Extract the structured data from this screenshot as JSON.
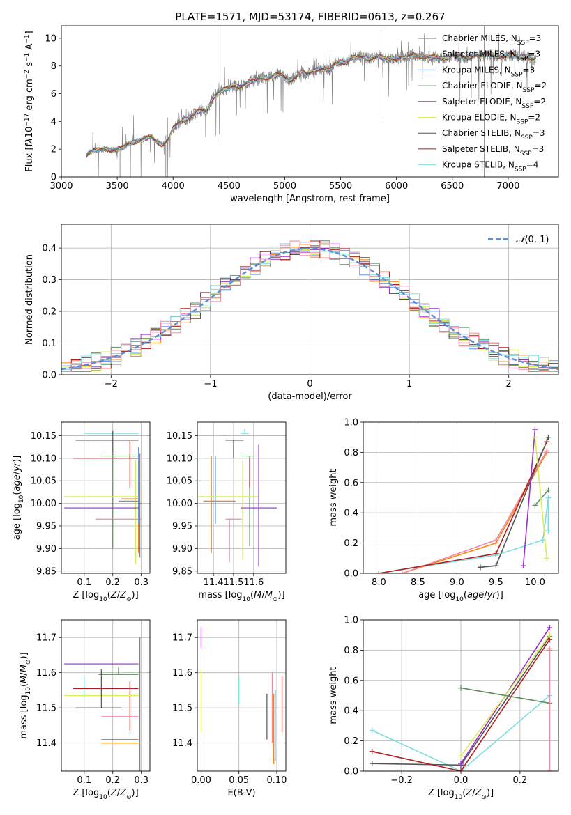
{
  "figure": {
    "title": "PLATE=1571, MJD=53174, FIBERID=0613, z=0.267"
  },
  "series_colors": [
    "#7f7f7f",
    "#ff7f0e",
    "#6495ed",
    "#5f8f5f",
    "#9b30c8",
    "#d6ef53",
    "#555555",
    "#b01e1e",
    "#7ddde0",
    "#f08ca6"
  ],
  "chart_data": [
    {
      "id": "spectrum",
      "type": "line",
      "xlabel": "wavelength [Angstrom, rest frame]",
      "ylabel_html": "Flux [f<tspan font-style='italic'>λ</tspan>10<tspan baseline-shift='super' font-size='9'>−17</tspan> erg cm<tspan baseline-shift='super' font-size='9'>−2</tspan> s<tspan baseline-shift='super' font-size='9'>−1</tspan> A<tspan baseline-shift='super' font-size='9'>−1</tspan>]",
      "xlim": [
        3000,
        7450
      ],
      "ylim": [
        0,
        10.9
      ],
      "xticks": [
        3000,
        3500,
        4000,
        4500,
        5000,
        5500,
        6000,
        6500,
        7000
      ],
      "yticks": [
        0,
        2,
        4,
        6,
        8,
        10
      ],
      "spectrum_x": [
        3220,
        3260,
        3300,
        3350,
        3400,
        3450,
        3500,
        3550,
        3600,
        3650,
        3700,
        3750,
        3800,
        3850,
        3900,
        3950,
        4000,
        4050,
        4100,
        4150,
        4200,
        4250,
        4300,
        4350,
        4400,
        4450,
        4500,
        4550,
        4600,
        4650,
        4700,
        4750,
        4800,
        4850,
        4900,
        4950,
        5000,
        5050,
        5100,
        5150,
        5200,
        5250,
        5300,
        5350,
        5400,
        5450,
        5500,
        5550,
        5600,
        5650,
        5700,
        5750,
        5800,
        5850,
        5900,
        5950,
        6000,
        6050,
        6100,
        6150,
        6200,
        6250,
        6300,
        6350,
        6400,
        6450,
        6500,
        6550,
        6600,
        6650,
        6700,
        6750,
        6800,
        6850,
        6900,
        6950,
        7000,
        7050,
        7100,
        7150,
        7200,
        7250
      ],
      "spectrum_y": [
        1.5,
        1.8,
        1.9,
        2.0,
        2.0,
        1.9,
        2.0,
        2.1,
        2.4,
        2.5,
        2.6,
        2.8,
        2.9,
        2.6,
        2.3,
        2.6,
        3.5,
        3.9,
        4.1,
        4.3,
        4.6,
        4.8,
        4.7,
        5.6,
        6.1,
        6.3,
        6.4,
        6.6,
        6.5,
        6.7,
        6.9,
        7.0,
        7.2,
        7.1,
        7.3,
        7.4,
        7.2,
        7.0,
        7.2,
        7.6,
        7.4,
        7.6,
        7.8,
        7.8,
        7.7,
        8.2,
        8.3,
        8.2,
        8.6,
        8.6,
        8.7,
        8.5,
        8.6,
        8.7,
        8.5,
        8.6,
        8.5,
        8.7,
        8.6,
        8.9,
        8.7,
        8.7,
        8.6,
        8.7,
        8.5,
        8.6,
        8.8,
        8.7,
        8.6,
        8.6,
        8.8,
        8.7,
        8.9,
        8.8,
        8.7,
        8.6,
        8.8,
        8.8,
        8.6,
        8.7,
        8.5,
        8.4
      ],
      "legend": [
        {
          "label": "Chabrier MILES, N",
          "sub": "SSP",
          "tail": "=3",
          "color": "#7f7f7f"
        },
        {
          "label": "Salpeter MILES, N",
          "sub": "SSP",
          "tail": "=3",
          "color": "#ff7f0e"
        },
        {
          "label": "Kroupa MILES, N",
          "sub": "SSP",
          "tail": "=3",
          "color": "#6495ed"
        },
        {
          "label": "Chabrier ELODIE, N",
          "sub": "SSP",
          "tail": "=2",
          "color": "#5f8f5f"
        },
        {
          "label": "Salpeter ELODIE, N",
          "sub": "SSP",
          "tail": "=2",
          "color": "#9b30c8"
        },
        {
          "label": "Kroupa ELODIE, N",
          "sub": "SSP",
          "tail": "=2",
          "color": "#d6ef53"
        },
        {
          "label": "Chabrier STELIB, N",
          "sub": "SSP",
          "tail": "=3",
          "color": "#555555"
        },
        {
          "label": "Salpeter STELIB, N",
          "sub": "SSP",
          "tail": "=3",
          "color": "#b01e1e"
        },
        {
          "label": "Kroupa STELIB, N",
          "sub": "SSP",
          "tail": "=4",
          "color": "#7ddde0"
        }
      ]
    },
    {
      "id": "residuals",
      "type": "histogram",
      "xlabel": "(data-model)/error",
      "ylabel": "Normed distribution",
      "xlim": [
        -2.5,
        2.5
      ],
      "ylim": [
        0,
        0.475
      ],
      "xticks": [
        -2,
        -1,
        0,
        1,
        2
      ],
      "yticks": [
        0.0,
        0.1,
        0.2,
        0.3,
        0.4
      ],
      "legend_label": "N(0,1)",
      "gaussian": {
        "mu": 0,
        "sigma": 1
      }
    },
    {
      "id": "age_vs_Z",
      "type": "errorbar",
      "xlabel": "Z [log10(Z/Z⊙)]",
      "ylabel": "age  [log10(age/yr)]",
      "xlim": [
        0.02,
        0.33
      ],
      "ylim": [
        9.845,
        10.18
      ],
      "xticks": [
        0.1,
        0.2,
        0.3
      ],
      "yticks": [
        9.85,
        9.9,
        9.95,
        10.0,
        10.05,
        10.1,
        10.15
      ],
      "points": [
        {
          "c": "#7ddde0",
          "x": 0.2,
          "xerr": [
            0.1,
            0.09
          ],
          "y": 10.155,
          "yerr": [
            0.0,
            0.01
          ]
        },
        {
          "c": "#555555",
          "x": 0.2,
          "xerr": [
            0.13,
            0.09
          ],
          "y": 10.14,
          "yerr": [
            0.04,
            0.02
          ]
        },
        {
          "c": "#b01e1e",
          "x": 0.26,
          "xerr": [
            0.2,
            0.03
          ],
          "y": 10.1,
          "yerr": [
            0.065,
            0.04
          ]
        },
        {
          "c": "#5f8f5f",
          "x": 0.2,
          "xerr": [
            0.04,
            0.09
          ],
          "y": 10.105,
          "yerr": [
            0.205,
            0.01
          ]
        },
        {
          "c": "#d6ef53",
          "x": 0.28,
          "xerr": [
            0.25,
            0.01
          ],
          "y": 10.015,
          "yerr": [
            0.15,
            0.08
          ]
        },
        {
          "c": "#ff7f0e",
          "x": 0.29,
          "xerr": [
            0.06,
            0.003
          ],
          "y": 10.01,
          "yerr": [
            0.12,
            0.11
          ]
        },
        {
          "c": "#6495ed",
          "x": 0.29,
          "xerr": [
            0.07,
            0.003
          ],
          "y": 10.005,
          "yerr": [
            0.05,
            0.12
          ]
        },
        {
          "c": "#9b30c8",
          "x": 0.2,
          "xerr": [
            0.17,
            0.09
          ],
          "y": 9.99,
          "yerr": [
            0.0,
            0.0
          ]
        },
        {
          "c": "#f08ca6",
          "x": 0.22,
          "xerr": [
            0.08,
            0.08
          ],
          "y": 9.965,
          "yerr": [
            0.0,
            0.0
          ]
        },
        {
          "c": "#7f7f7f",
          "x": 0.295,
          "xerr": [
            0.0,
            0.005
          ],
          "y": 10.0,
          "yerr": [
            0.12,
            0.11
          ]
        }
      ]
    },
    {
      "id": "age_vs_mass",
      "type": "errorbar",
      "xlabel": "mass [log10(M/M⊙)]",
      "ylabel": "",
      "xlim": [
        11.32,
        11.76
      ],
      "ylim": [
        9.845,
        10.18
      ],
      "xticks": [
        11.4,
        11.5,
        11.6
      ],
      "yticks": [
        9.85,
        9.9,
        9.95,
        10.0,
        10.05,
        10.1,
        10.15
      ],
      "points": [
        {
          "c": "#7ddde0",
          "x": 11.555,
          "xerr": [
            0.02,
            0.02
          ],
          "y": 10.155,
          "yerr": [
            0.0,
            0.01
          ]
        },
        {
          "c": "#555555",
          "x": 11.5,
          "xerr": [
            0.04,
            0.05
          ],
          "y": 10.14,
          "yerr": [
            0.04,
            0.0
          ]
        },
        {
          "c": "#5f8f5f",
          "x": 11.58,
          "xerr": [
            0.04,
            0.02
          ],
          "y": 10.105,
          "yerr": [
            0.2,
            0.0
          ]
        },
        {
          "c": "#b01e1e",
          "x": 11.58,
          "xerr": [
            0.0,
            0.0
          ],
          "y": 10.1,
          "yerr": [
            0.065,
            0.0
          ]
        },
        {
          "c": "#ff7f0e",
          "x": 11.39,
          "xerr": [
            0.04,
            0.12
          ],
          "y": 10.005,
          "yerr": [
            0.115,
            0.1
          ]
        },
        {
          "c": "#6495ed",
          "x": 11.41,
          "xerr": [
            0.0,
            0.0
          ],
          "y": 10.005,
          "yerr": [
            0.05,
            0.1
          ]
        },
        {
          "c": "#d6ef53",
          "x": 11.545,
          "xerr": [
            0.22,
            0.08
          ],
          "y": 10.015,
          "yerr": [
            0.14,
            0.08
          ]
        },
        {
          "c": "#9b30c8",
          "x": 11.625,
          "xerr": [
            0.09,
            0.09
          ],
          "y": 9.99,
          "yerr": [
            0.13,
            0.14
          ]
        },
        {
          "c": "#f08ca6",
          "x": 11.48,
          "xerr": [
            0.02,
            0.06
          ],
          "y": 9.965,
          "yerr": [
            0.095,
            0.0
          ]
        },
        {
          "c": "#7f7f7f",
          "x": 11.605,
          "xerr": [
            0.0,
            0.0
          ],
          "y": 10.0,
          "yerr": [
            0.0,
            0.0
          ]
        }
      ]
    },
    {
      "id": "weight_vs_age",
      "type": "line",
      "xlabel": "age  [log10(age/yr)]",
      "ylabel": "mass weight",
      "xlim": [
        7.8,
        10.3
      ],
      "ylim": [
        0,
        1
      ],
      "xticks": [
        8.0,
        8.5,
        9.0,
        9.5,
        10.0
      ],
      "yticks": [
        0.0,
        0.2,
        0.4,
        0.6,
        0.8,
        1.0
      ],
      "lines": [
        {
          "c": "#7ddde0",
          "x": [
            8.0,
            9.5,
            10.1,
            10.17,
            10.17
          ],
          "y": [
            0.0,
            0.12,
            0.22,
            0.5,
            0.28
          ]
        },
        {
          "c": "#ff7f0e",
          "x": [
            8.3,
            9.5,
            10.15
          ],
          "y": [
            0.0,
            0.2,
            0.8
          ]
        },
        {
          "c": "#f08ca6",
          "x": [
            8.3,
            9.5,
            10.15
          ],
          "y": [
            0.0,
            0.22,
            0.81
          ]
        },
        {
          "c": "#b01e1e",
          "x": [
            8.0,
            9.5,
            10.15
          ],
          "y": [
            0.0,
            0.13,
            0.87
          ]
        },
        {
          "c": "#555555",
          "x": [
            9.3,
            9.5,
            10.17
          ],
          "y": [
            0.04,
            0.05,
            0.9
          ]
        },
        {
          "c": "#5f8f5f",
          "x": [
            10.0,
            10.17
          ],
          "y": [
            0.45,
            0.55
          ]
        },
        {
          "c": "#9b30c8",
          "x": [
            9.85,
            10.0
          ],
          "y": [
            0.05,
            0.95
          ]
        },
        {
          "c": "#d6ef53",
          "x": [
            10.0,
            10.15
          ],
          "y": [
            0.9,
            0.1
          ]
        }
      ]
    },
    {
      "id": "mass_vs_Z",
      "type": "errorbar",
      "xlabel": "Z [log10(Z/Z⊙)]",
      "ylabel": "mass [log10(M/M⊙)]",
      "xlim": [
        0.02,
        0.33
      ],
      "ylim": [
        11.32,
        11.75
      ],
      "xticks": [
        0.1,
        0.2,
        0.3
      ],
      "yticks": [
        11.4,
        11.5,
        11.6,
        11.7
      ],
      "points": [
        {
          "c": "#9b30c8",
          "x": 0.22,
          "xerr": [
            0.19,
            0.07
          ],
          "y": 11.625,
          "yerr": [
            0.0,
            0.0
          ]
        },
        {
          "c": "#5f8f5f",
          "x": 0.22,
          "xerr": [
            0.07,
            0.07
          ],
          "y": 11.595,
          "yerr": [
            0.0,
            0.02
          ]
        },
        {
          "c": "#7ddde0",
          "x": 0.1,
          "xerr": [
            0.0,
            0.0
          ],
          "y": 11.56,
          "yerr": [
            0.03,
            0.03
          ]
        },
        {
          "c": "#b01e1e",
          "x": 0.26,
          "xerr": [
            0.2,
            0.03
          ],
          "y": 11.555,
          "yerr": [
            0.12,
            0.02
          ]
        },
        {
          "c": "#d6ef53",
          "x": 0.2,
          "xerr": [
            0.17,
            0.09
          ],
          "y": 11.535,
          "yerr": [
            0.0,
            0.0
          ]
        },
        {
          "c": "#555555",
          "x": 0.16,
          "xerr": [
            0.09,
            0.07
          ],
          "y": 11.5,
          "yerr": [
            0.0,
            0.11
          ]
        },
        {
          "c": "#f08ca6",
          "x": 0.22,
          "xerr": [
            0.06,
            0.07
          ],
          "y": 11.475,
          "yerr": [
            0.0,
            0.0
          ]
        },
        {
          "c": "#6495ed",
          "x": 0.22,
          "xerr": [
            0.06,
            0.07
          ],
          "y": 11.41,
          "yerr": [
            0.0,
            0.0
          ]
        },
        {
          "c": "#ff7f0e",
          "x": 0.22,
          "xerr": [
            0.06,
            0.07
          ],
          "y": 11.4,
          "yerr": [
            0.0,
            0.0
          ]
        },
        {
          "c": "#7f7f7f",
          "x": 0.295,
          "xerr": [
            0.0,
            0.0
          ],
          "y": 11.5,
          "yerr": [
            0.18,
            0.2
          ]
        }
      ]
    },
    {
      "id": "mass_vs_ebv",
      "type": "errorbar",
      "xlabel": "E(B-V)",
      "ylabel": "",
      "xlim": [
        -0.005,
        0.112
      ],
      "ylim": [
        11.32,
        11.75
      ],
      "xticks": [
        0.0,
        0.05,
        0.1
      ],
      "yticks": [
        11.4,
        11.5,
        11.6,
        11.7
      ],
      "points": [
        {
          "c": "#9b30c8",
          "x": 0.0,
          "xerr": [
            0,
            0
          ],
          "y": 11.7,
          "yerr": [
            0.03,
            0.03
          ]
        },
        {
          "c": "#d6ef53",
          "x": 0.0,
          "xerr": [
            0,
            0
          ],
          "y": 11.52,
          "yerr": [
            0.09,
            0.09
          ]
        },
        {
          "c": "#7ddde0",
          "x": 0.05,
          "xerr": [
            0,
            0
          ],
          "y": 11.55,
          "yerr": [
            0.04,
            0.04
          ]
        },
        {
          "c": "#555555",
          "x": 0.087,
          "xerr": [
            0,
            0
          ],
          "y": 11.47,
          "yerr": [
            0.06,
            0.07
          ]
        },
        {
          "c": "#f08ca6",
          "x": 0.094,
          "xerr": [
            0,
            0
          ],
          "y": 11.5,
          "yerr": [
            0.1,
            0.1
          ]
        },
        {
          "c": "#6495ed",
          "x": 0.098,
          "xerr": [
            0,
            0
          ],
          "y": 11.45,
          "yerr": [
            0.1,
            0.1
          ]
        },
        {
          "c": "#ff7f0e",
          "x": 0.096,
          "xerr": [
            0,
            0
          ],
          "y": 11.44,
          "yerr": [
            0.1,
            0.1
          ]
        },
        {
          "c": "#b01e1e",
          "x": 0.107,
          "xerr": [
            0,
            0
          ],
          "y": 11.51,
          "yerr": [
            0.08,
            0.08
          ]
        }
      ]
    },
    {
      "id": "weight_vs_Z",
      "type": "line",
      "xlabel": "Z [log10(Z/Z⊙)]",
      "ylabel": "mass weight",
      "xlim": [
        -0.33,
        0.33
      ],
      "ylim": [
        0,
        1
      ],
      "xticks": [
        -0.2,
        0.0,
        0.2
      ],
      "yticks": [
        0.0,
        0.2,
        0.4,
        0.6,
        0.8,
        1.0
      ],
      "lines": [
        {
          "c": "#7ddde0",
          "x": [
            -0.3,
            0.0,
            0.3
          ],
          "y": [
            0.27,
            0.0,
            0.5
          ]
        },
        {
          "c": "#555555",
          "x": [
            -0.3,
            0.0,
            0.3
          ],
          "y": [
            0.05,
            0.04,
            0.89
          ]
        },
        {
          "c": "#b01e1e",
          "x": [
            -0.3,
            0.0,
            0.3
          ],
          "y": [
            0.13,
            0.0,
            0.87
          ]
        },
        {
          "c": "#9b30c8",
          "x": [
            0.0,
            0.3
          ],
          "y": [
            0.05,
            0.95
          ]
        },
        {
          "c": "#d6ef53",
          "x": [
            0.0,
            0.3
          ],
          "y": [
            0.1,
            0.9
          ]
        },
        {
          "c": "#5f8f5f",
          "x": [
            0.0,
            0.3
          ],
          "y": [
            0.55,
            0.45
          ]
        },
        {
          "c": "#ff7f0e",
          "x": [
            0.3,
            0.3
          ],
          "y": [
            0.0,
            0.8
          ]
        },
        {
          "c": "#f08ca6",
          "x": [
            0.3,
            0.3
          ],
          "y": [
            0.0,
            0.81
          ]
        }
      ]
    }
  ]
}
